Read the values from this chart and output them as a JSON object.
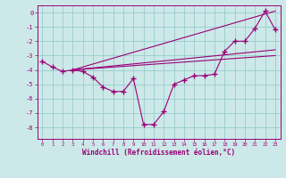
{
  "xlabel": "Windchill (Refroidissement éolien,°C)",
  "bg_color": "#cce8e8",
  "grid_color": "#99cccc",
  "line_color": "#990077",
  "xlim": [
    -0.5,
    23.5
  ],
  "ylim": [
    -8.8,
    0.5
  ],
  "yticks": [
    0,
    -1,
    -2,
    -3,
    -4,
    -5,
    -6,
    -7,
    -8
  ],
  "xticks": [
    0,
    1,
    2,
    3,
    4,
    5,
    6,
    7,
    8,
    9,
    10,
    11,
    12,
    13,
    14,
    15,
    16,
    17,
    18,
    19,
    20,
    21,
    22,
    23
  ],
  "line1_x": [
    0,
    1,
    2,
    3,
    4,
    5,
    6,
    7,
    8,
    9,
    10,
    11,
    12,
    13,
    14,
    15,
    16,
    17,
    18,
    19,
    20,
    21,
    22,
    23
  ],
  "line1_y": [
    -3.4,
    -3.8,
    -4.1,
    -4.0,
    -4.1,
    -4.5,
    -5.2,
    -5.5,
    -5.5,
    -4.6,
    -7.8,
    -7.8,
    -6.9,
    -5.0,
    -4.7,
    -4.4,
    -4.4,
    -4.3,
    -2.7,
    -2.0,
    -2.0,
    -1.1,
    0.1,
    -1.2
  ],
  "line2_x": [
    3,
    23
  ],
  "line2_y": [
    -4.0,
    0.1
  ],
  "line3_x": [
    3,
    23
  ],
  "line3_y": [
    -4.0,
    -2.6
  ],
  "line4_x": [
    3,
    23
  ],
  "line4_y": [
    -4.0,
    -3.0
  ]
}
